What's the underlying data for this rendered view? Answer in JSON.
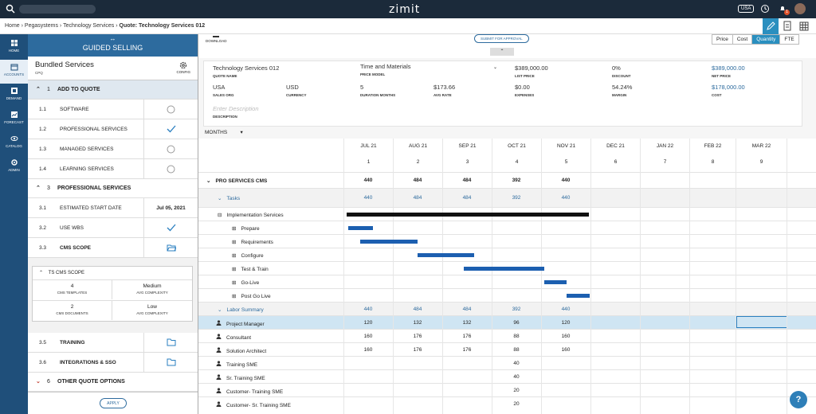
{
  "app": {
    "brand": "zimit",
    "region_badge": "USA",
    "notification_count": "1"
  },
  "breadcrumb": [
    "Home",
    "Pegasystems",
    "Technology Services",
    "Quote: Technology Services 012"
  ],
  "nav": [
    {
      "label": "HOME",
      "icon": "home-icon"
    },
    {
      "label": "ACCOUNTS",
      "icon": "accounts-icon"
    },
    {
      "label": "DEMAND",
      "icon": "demand-icon"
    },
    {
      "label": "FORECAST",
      "icon": "forecast-icon"
    },
    {
      "label": "CATALOG",
      "icon": "catalog-icon"
    },
    {
      "label": "ADMIN",
      "icon": "admin-icon"
    }
  ],
  "guided": {
    "title": "GUIDED SELLING",
    "bundle_title": "Bundled Services",
    "bundle_sub": "CPQ",
    "config_label": "CONFIG",
    "sections": {
      "s1": {
        "num": "1",
        "label": "ADD TO QUOTE"
      },
      "s3": {
        "num": "3",
        "label": "PROFESSIONAL SERVICES"
      },
      "s6": {
        "num": "6",
        "label": "OTHER QUOTE OPTIONS"
      }
    },
    "items": [
      {
        "num": "1.1",
        "label": "SOFTWARE"
      },
      {
        "num": "1.2",
        "label": "PROFESSIONAL SERVICES"
      },
      {
        "num": "1.3",
        "label": "MANAGED SERVICES"
      },
      {
        "num": "1.4",
        "label": "LEARNING SERVICES"
      },
      {
        "num": "3.1",
        "label": "ESTIMATED START DATE",
        "value": "Jul 05, 2021"
      },
      {
        "num": "3.2",
        "label": "USE WBS"
      },
      {
        "num": "3.3",
        "label": "CMS SCOPE"
      },
      {
        "num": "3.5",
        "label": "TRAINING"
      },
      {
        "num": "3.6",
        "label": "INTEGRATIONS & SSO"
      }
    ],
    "cms": {
      "title": "TS CMS SCOPE",
      "cells": [
        {
          "value": "4",
          "caption": "CMS TEMPLATES"
        },
        {
          "value": "Medium",
          "caption": "AVG COMPLEXITY"
        },
        {
          "value": "2",
          "caption": "CMS DOCUMENTS"
        },
        {
          "value": "Low",
          "caption": "AVG COMPLEXITY"
        }
      ]
    },
    "apply_label": "APPLY"
  },
  "toolbar": {
    "download_label": "DOWNLOAD",
    "submit_label": "SUBMIT FOR APPROVAL",
    "view_tabs": [
      "Price",
      "Cost",
      "Quantity",
      "FTE"
    ],
    "active_view": "Quantity"
  },
  "quote": {
    "quote_name": {
      "value": "Technology Services 012",
      "label": "QUOTE NAME"
    },
    "price_model": {
      "value": "Time and Materials",
      "label": "PRICE MODEL"
    },
    "list_price": {
      "value": "$389,000.00",
      "label": "LIST PRICE"
    },
    "discount": {
      "value": "0%",
      "label": "DISCOUNT"
    },
    "net_price": {
      "value": "$389,000.00",
      "label": "NET PRICE"
    },
    "sales_org": {
      "value": "USA",
      "label": "SALES ORG"
    },
    "currency": {
      "value": "USD",
      "label": "CURRENCY"
    },
    "duration": {
      "value": "5",
      "label": "DURATION MONTHS"
    },
    "avg_rate": {
      "value": "$173.66",
      "label": "AVG RATE"
    },
    "expenses": {
      "value": "$0.00",
      "label": "EXPENSES"
    },
    "margin": {
      "value": "54.24%",
      "label": "MARGIN"
    },
    "cost": {
      "value": "$178,000.00",
      "label": "COST"
    },
    "description": {
      "placeholder": "Enter Description",
      "label": "DESCRIPTION"
    }
  },
  "grid": {
    "period_select": "MONTHS",
    "months": [
      "JUL 21",
      "AUG 21",
      "SEP 21",
      "OCT 21",
      "NOV 21",
      "DEC 21",
      "JAN 22",
      "FEB 22",
      "MAR 22"
    ],
    "indices": [
      "1",
      "2",
      "3",
      "4",
      "5",
      "6",
      "7",
      "8",
      "9"
    ],
    "rows": [
      {
        "name": "PRO SERVICES CMS",
        "values": [
          "440",
          "484",
          "484",
          "392",
          "440"
        ]
      },
      {
        "name": "Tasks",
        "values": [
          "440",
          "484",
          "484",
          "392",
          "440"
        ]
      },
      {
        "name": "Implementation Services",
        "values": []
      },
      {
        "name": "Prepare",
        "values": []
      },
      {
        "name": "Requirements",
        "values": []
      },
      {
        "name": "Configure",
        "values": []
      },
      {
        "name": "Test & Train",
        "values": []
      },
      {
        "name": "Go-Live",
        "values": []
      },
      {
        "name": "Post Go Live",
        "values": []
      },
      {
        "name": "Labor Summary",
        "values": [
          "440",
          "484",
          "484",
          "392",
          "440"
        ]
      },
      {
        "name": "Project Manager",
        "values": [
          "120",
          "132",
          "132",
          "96",
          "120"
        ]
      },
      {
        "name": "Consultant",
        "values": [
          "160",
          "176",
          "176",
          "88",
          "160"
        ]
      },
      {
        "name": "Solution Architect",
        "values": [
          "160",
          "176",
          "176",
          "88",
          "160"
        ]
      },
      {
        "name": "Training SME",
        "values": [
          "",
          "",
          "",
          "40",
          ""
        ]
      },
      {
        "name": "Sr. Training SME",
        "values": [
          "",
          "",
          "",
          "40",
          ""
        ]
      },
      {
        "name": "Customer- Training SME",
        "values": [
          "",
          "",
          "",
          "20",
          ""
        ]
      },
      {
        "name": "Customer- Sr. Training SME",
        "values": [
          "",
          "",
          "",
          "20",
          ""
        ]
      }
    ]
  },
  "help_label": "?"
}
